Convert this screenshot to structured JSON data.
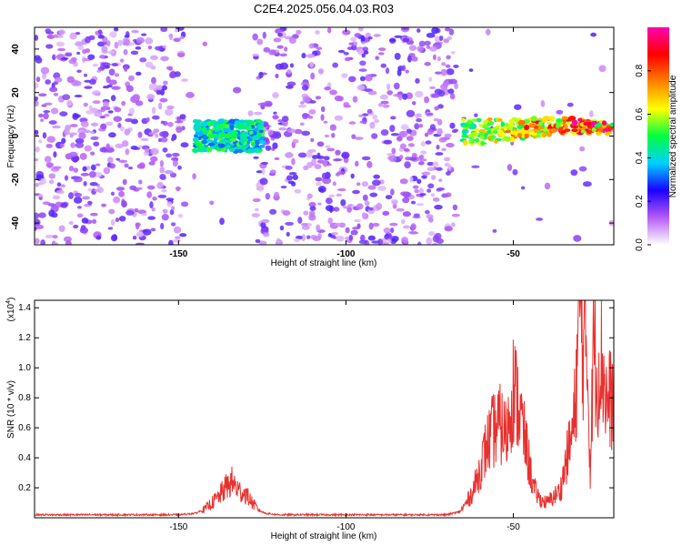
{
  "title": "C2E4.2025.056.04.03.R03",
  "chart_data": [
    {
      "type": "heatmap",
      "xlabel": "Height of straight line (km)",
      "ylabel": "Frequency (Hz)",
      "xlim": [
        -193,
        -20
      ],
      "ylim": [
        -50,
        50
      ],
      "x_ticks": [
        -150,
        -100,
        -50
      ],
      "y_ticks": [
        -40,
        -20,
        0,
        20,
        40
      ],
      "colorbar": {
        "label": "Normalized spectral amplitude",
        "range": [
          0,
          1
        ],
        "ticks": [
          0.0,
          0.2,
          0.4,
          0.6,
          0.8
        ],
        "colors": [
          "#ffffff",
          "#b55cf5",
          "#1a00ff",
          "#00d0ff",
          "#00ff40",
          "#ffff00",
          "#ff8000",
          "#ff0000",
          "#ff00b0"
        ]
      },
      "signal_band": {
        "segments": [
          {
            "x_range": [
              -145,
              -125
            ],
            "frequency_center": 0,
            "peak_amplitude": 0.45
          },
          {
            "x_range": [
              -65,
              -20
            ],
            "frequency_center": [
              0,
              5
            ],
            "peak_amplitude": 0.95
          }
        ]
      }
    },
    {
      "type": "line",
      "xlabel": "Height of straight line (km)",
      "ylabel": "SNR (10 * v/v)",
      "y_exponent_label": "(x10",
      "y_exponent_power": "4",
      "y_exponent_close": ")",
      "xlim": [
        -193,
        -20
      ],
      "ylim": [
        0,
        1.45
      ],
      "x_ticks": [
        -150,
        -100,
        -50
      ],
      "y_ticks": [
        0.2,
        0.4,
        0.6,
        0.8,
        1.0,
        1.2,
        1.4
      ],
      "color": "#e8302e",
      "series": [
        {
          "x": [
            -193,
            -185,
            -175,
            -165,
            -155,
            -150,
            -145,
            -142,
            -140,
            -138,
            -136,
            -134,
            -132,
            -130,
            -128,
            -126,
            -124,
            -120,
            -110,
            -100,
            -90,
            -80,
            -70,
            -66,
            -64,
            -62,
            -60,
            -58,
            -56,
            -54,
            -52,
            -50,
            -48,
            -46,
            -44,
            -42,
            -40,
            -38,
            -36,
            -34,
            -32,
            -31,
            -30,
            -29,
            -28,
            -27,
            -26,
            -25,
            -24,
            -23,
            -22,
            -21,
            -20
          ],
          "y": [
            0.02,
            0.02,
            0.02,
            0.02,
            0.02,
            0.02,
            0.03,
            0.06,
            0.1,
            0.14,
            0.2,
            0.24,
            0.18,
            0.16,
            0.1,
            0.05,
            0.03,
            0.02,
            0.02,
            0.02,
            0.02,
            0.02,
            0.02,
            0.04,
            0.1,
            0.18,
            0.32,
            0.48,
            0.58,
            0.62,
            0.55,
            0.88,
            0.7,
            0.45,
            0.2,
            0.12,
            0.1,
            0.14,
            0.18,
            0.4,
            0.6,
            1.0,
            1.44,
            1.1,
            1.15,
            0.3,
            1.22,
            0.9,
            1.1,
            0.95,
            0.75,
            0.8,
            0.78
          ]
        }
      ]
    }
  ]
}
